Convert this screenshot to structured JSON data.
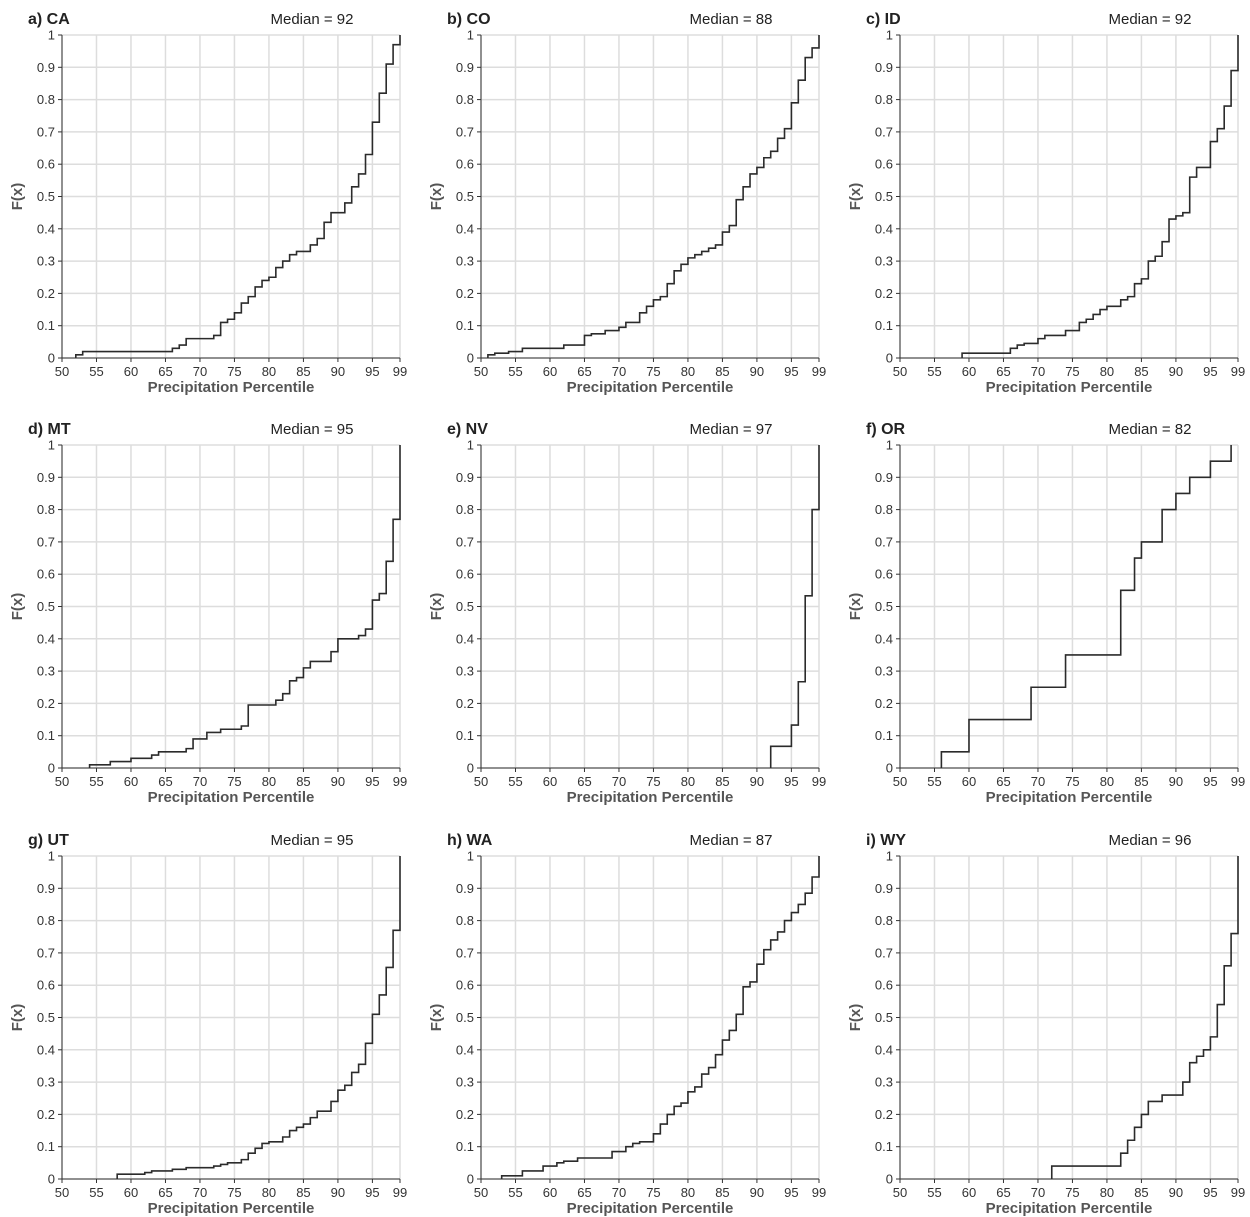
{
  "figure": {
    "x_ticks": [
      "50",
      "55",
      "60",
      "65",
      "70",
      "75",
      "80",
      "85",
      "90",
      "95",
      "99"
    ],
    "y_ticks": [
      "0",
      "0.1",
      "0.2",
      "0.3",
      "0.4",
      "0.5",
      "0.6",
      "0.7",
      "0.8",
      "0.9",
      "1"
    ]
  },
  "chart_data": [
    {
      "type": "line",
      "title": "a) CA",
      "subtitle": "Median = 92",
      "xlabel": "Precipitation Percentile",
      "ylabel": "F(x)",
      "xlim": [
        50,
        99
      ],
      "ylim": [
        0,
        1
      ],
      "grid": true,
      "series": [
        {
          "x": [
            52,
            53,
            66,
            67,
            68,
            72,
            73,
            74,
            75,
            76,
            77,
            78,
            79,
            80,
            81,
            82,
            83,
            84,
            86,
            87,
            88,
            89,
            91,
            92,
            93,
            94,
            95,
            96,
            97,
            98,
            99
          ],
          "y": [
            0.01,
            0.02,
            0.03,
            0.04,
            0.06,
            0.07,
            0.11,
            0.12,
            0.14,
            0.17,
            0.19,
            0.22,
            0.24,
            0.25,
            0.28,
            0.3,
            0.32,
            0.33,
            0.35,
            0.37,
            0.42,
            0.45,
            0.48,
            0.53,
            0.57,
            0.63,
            0.73,
            0.82,
            0.91,
            0.97,
            1.0
          ]
        }
      ]
    },
    {
      "type": "line",
      "title": "b) CO",
      "subtitle": "Median = 88",
      "xlabel": "Precipitation Percentile",
      "ylabel": "F(x)",
      "xlim": [
        50,
        99
      ],
      "ylim": [
        0,
        1
      ],
      "grid": true,
      "series": [
        {
          "x": [
            51,
            52,
            54,
            56,
            62,
            65,
            66,
            68,
            70,
            71,
            73,
            74,
            75,
            76,
            77,
            78,
            79,
            80,
            81,
            82,
            83,
            84,
            85,
            86,
            87,
            88,
            89,
            90,
            91,
            92,
            93,
            94,
            95,
            96,
            97,
            98,
            99
          ],
          "y": [
            0.01,
            0.015,
            0.02,
            0.03,
            0.04,
            0.07,
            0.075,
            0.085,
            0.095,
            0.11,
            0.14,
            0.16,
            0.18,
            0.19,
            0.23,
            0.27,
            0.29,
            0.31,
            0.32,
            0.33,
            0.34,
            0.35,
            0.39,
            0.41,
            0.49,
            0.53,
            0.57,
            0.59,
            0.62,
            0.64,
            0.68,
            0.71,
            0.79,
            0.86,
            0.93,
            0.96,
            1.0
          ]
        }
      ]
    },
    {
      "type": "line",
      "title": "c) ID",
      "subtitle": "Median = 92",
      "xlabel": "Precipitation Percentile",
      "ylabel": "F(x)",
      "xlim": [
        50,
        99
      ],
      "ylim": [
        0,
        1
      ],
      "grid": true,
      "series": [
        {
          "x": [
            59,
            66,
            67,
            68,
            70,
            71,
            74,
            76,
            77,
            78,
            79,
            80,
            82,
            83,
            84,
            85,
            86,
            87,
            88,
            89,
            90,
            91,
            92,
            93,
            95,
            96,
            97,
            98,
            99
          ],
          "y": [
            0.015,
            0.03,
            0.04,
            0.045,
            0.06,
            0.07,
            0.085,
            0.11,
            0.12,
            0.135,
            0.15,
            0.16,
            0.18,
            0.19,
            0.23,
            0.245,
            0.3,
            0.315,
            0.36,
            0.43,
            0.44,
            0.45,
            0.56,
            0.59,
            0.67,
            0.71,
            0.78,
            0.89,
            1.0
          ]
        }
      ]
    },
    {
      "type": "line",
      "title": "d) MT",
      "subtitle": "Median = 95",
      "xlabel": "Precipitation Percentile",
      "ylabel": "F(x)",
      "xlim": [
        50,
        99
      ],
      "ylim": [
        0,
        1
      ],
      "grid": true,
      "series": [
        {
          "x": [
            54,
            57,
            60,
            63,
            64,
            68,
            69,
            71,
            73,
            76,
            77,
            81,
            82,
            83,
            84,
            85,
            86,
            89,
            90,
            93,
            94,
            95,
            96,
            97,
            98,
            99
          ],
          "y": [
            0.01,
            0.02,
            0.03,
            0.04,
            0.05,
            0.06,
            0.09,
            0.11,
            0.12,
            0.13,
            0.195,
            0.21,
            0.23,
            0.27,
            0.28,
            0.31,
            0.33,
            0.36,
            0.4,
            0.41,
            0.43,
            0.52,
            0.54,
            0.64,
            0.77,
            1.0
          ]
        }
      ]
    },
    {
      "type": "line",
      "title": "e) NV",
      "subtitle": "Median = 97",
      "xlabel": "Precipitation Percentile",
      "ylabel": "F(x)",
      "xlim": [
        50,
        99
      ],
      "ylim": [
        0,
        1
      ],
      "grid": true,
      "series": [
        {
          "x": [
            92,
            95,
            96,
            97,
            98,
            99
          ],
          "y": [
            0.067,
            0.133,
            0.267,
            0.533,
            0.8,
            1.0
          ]
        }
      ]
    },
    {
      "type": "line",
      "title": "f) OR",
      "subtitle": "Median = 82",
      "xlabel": "Precipitation Percentile",
      "ylabel": "F(x)",
      "xlim": [
        50,
        99
      ],
      "ylim": [
        0,
        1
      ],
      "grid": true,
      "series": [
        {
          "x": [
            56,
            60,
            69,
            74,
            82,
            84,
            85,
            88,
            90,
            92,
            95,
            98
          ],
          "y": [
            0.05,
            0.15,
            0.25,
            0.35,
            0.55,
            0.65,
            0.7,
            0.8,
            0.85,
            0.9,
            0.95,
            1.0
          ]
        }
      ]
    },
    {
      "type": "line",
      "title": "g) UT",
      "subtitle": "Median = 95",
      "xlabel": "Precipitation Percentile",
      "ylabel": "F(x)",
      "xlim": [
        50,
        99
      ],
      "ylim": [
        0,
        1
      ],
      "grid": true,
      "series": [
        {
          "x": [
            58,
            62,
            63,
            66,
            68,
            72,
            73,
            74,
            76,
            77,
            78,
            79,
            80,
            82,
            83,
            84,
            85,
            86,
            87,
            89,
            90,
            91,
            92,
            93,
            94,
            95,
            96,
            97,
            98,
            99
          ],
          "y": [
            0.015,
            0.02,
            0.025,
            0.03,
            0.035,
            0.04,
            0.045,
            0.05,
            0.06,
            0.08,
            0.095,
            0.11,
            0.115,
            0.13,
            0.15,
            0.16,
            0.17,
            0.19,
            0.21,
            0.24,
            0.275,
            0.29,
            0.33,
            0.355,
            0.42,
            0.51,
            0.57,
            0.655,
            0.77,
            1.0
          ]
        }
      ]
    },
    {
      "type": "line",
      "title": "h) WA",
      "subtitle": "Median = 87",
      "xlabel": "Precipitation Percentile",
      "ylabel": "F(x)",
      "xlim": [
        50,
        99
      ],
      "ylim": [
        0,
        1
      ],
      "grid": true,
      "series": [
        {
          "x": [
            53,
            56,
            59,
            61,
            62,
            64,
            69,
            71,
            72,
            73,
            75,
            76,
            77,
            78,
            79,
            80,
            81,
            82,
            83,
            84,
            85,
            86,
            87,
            88,
            89,
            90,
            91,
            92,
            93,
            94,
            95,
            96,
            97,
            98,
            99
          ],
          "y": [
            0.01,
            0.025,
            0.04,
            0.05,
            0.055,
            0.065,
            0.085,
            0.1,
            0.11,
            0.115,
            0.14,
            0.17,
            0.2,
            0.225,
            0.235,
            0.27,
            0.285,
            0.325,
            0.345,
            0.385,
            0.43,
            0.46,
            0.51,
            0.595,
            0.61,
            0.665,
            0.71,
            0.74,
            0.765,
            0.8,
            0.825,
            0.85,
            0.885,
            0.935,
            1.0
          ]
        }
      ]
    },
    {
      "type": "line",
      "title": "i) WY",
      "subtitle": "Median = 96",
      "xlabel": "Precipitation Percentile",
      "ylabel": "F(x)",
      "xlim": [
        50,
        99
      ],
      "ylim": [
        0,
        1
      ],
      "grid": true,
      "series": [
        {
          "x": [
            72,
            82,
            83,
            84,
            85,
            86,
            88,
            91,
            92,
            93,
            94,
            95,
            96,
            97,
            98,
            99
          ],
          "y": [
            0.04,
            0.08,
            0.12,
            0.16,
            0.2,
            0.24,
            0.26,
            0.3,
            0.36,
            0.38,
            0.4,
            0.44,
            0.54,
            0.66,
            0.76,
            1.0
          ]
        }
      ]
    }
  ]
}
